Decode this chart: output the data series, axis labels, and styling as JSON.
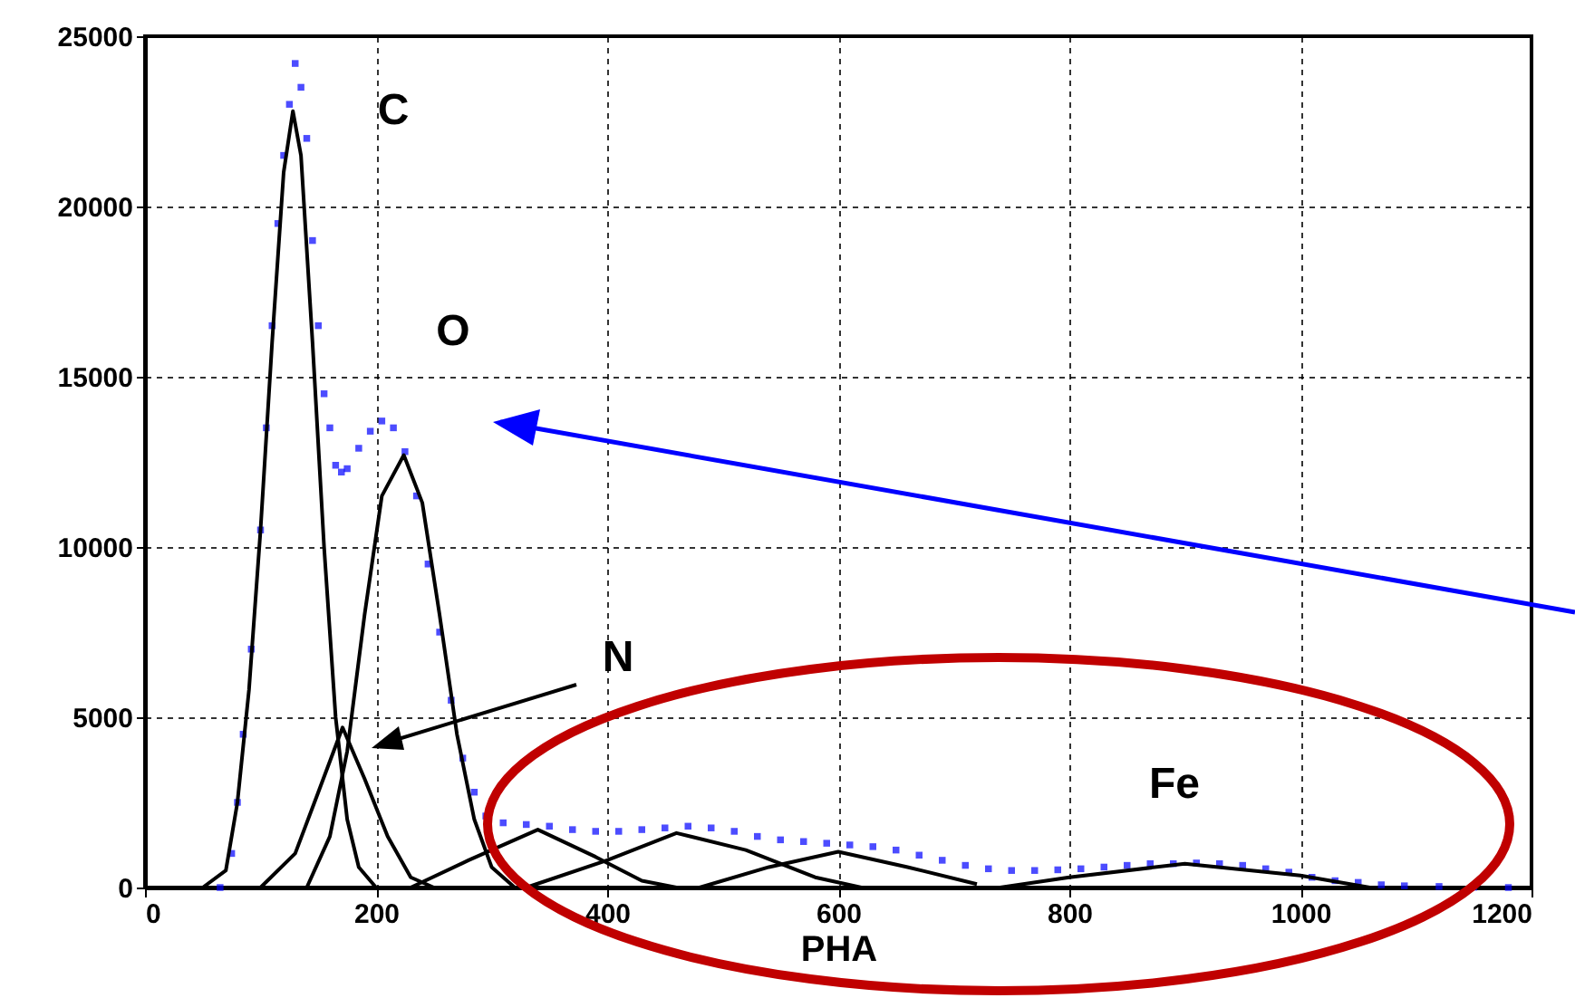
{
  "chart_data": {
    "type": "line",
    "xlabel": "PHA",
    "xlim": [
      0,
      1200
    ],
    "xticks": [
      0,
      200,
      400,
      600,
      800,
      1000,
      1200
    ],
    "ylim": [
      0,
      25000
    ],
    "yticks": [
      0,
      5000,
      10000,
      15000,
      20000,
      25000
    ],
    "grid": true,
    "annotations": [
      "C",
      "O",
      "N",
      "Fe"
    ],
    "series": [
      {
        "type": "scatter",
        "marker": "square",
        "color": "#0000ff",
        "x": [
          65,
          75,
          80,
          85,
          92,
          100,
          105,
          110,
          115,
          120,
          125,
          130,
          135,
          140,
          145,
          150,
          155,
          160,
          165,
          170,
          175,
          185,
          195,
          205,
          215,
          225,
          235,
          245,
          255,
          265,
          275,
          285,
          295,
          310,
          330,
          350,
          370,
          390,
          410,
          430,
          450,
          470,
          490,
          510,
          530,
          550,
          570,
          590,
          610,
          630,
          650,
          670,
          690,
          710,
          730,
          750,
          770,
          790,
          810,
          830,
          850,
          870,
          890,
          910,
          930,
          950,
          970,
          990,
          1010,
          1030,
          1050,
          1070,
          1090,
          1120,
          1150,
          1180
        ],
        "values": [
          0,
          1000,
          2500,
          4500,
          7000,
          10500,
          13500,
          16500,
          19500,
          21500,
          23000,
          24200,
          23500,
          22000,
          19000,
          16500,
          14500,
          13500,
          12400,
          12200,
          12300,
          12900,
          13400,
          13700,
          13500,
          12800,
          11500,
          9500,
          7500,
          5500,
          3800,
          2800,
          2100,
          1900,
          1850,
          1800,
          1700,
          1650,
          1650,
          1700,
          1750,
          1800,
          1750,
          1650,
          1500,
          1400,
          1350,
          1300,
          1250,
          1200,
          1100,
          950,
          800,
          650,
          550,
          500,
          500,
          520,
          550,
          600,
          650,
          700,
          700,
          720,
          700,
          650,
          550,
          450,
          300,
          200,
          150,
          80,
          50,
          30,
          10,
          0
        ]
      },
      {
        "color": "#000000",
        "x": [
          50,
          70,
          80,
          90,
          100,
          110,
          120,
          128,
          135,
          145,
          155,
          165,
          175,
          185,
          200
        ],
        "values": [
          0,
          500,
          2500,
          5800,
          10500,
          16000,
          21000,
          22800,
          21500,
          16000,
          10000,
          5000,
          2000,
          600,
          0
        ]
      },
      {
        "color": "#000000",
        "x": [
          140,
          160,
          175,
          190,
          205,
          224,
          240,
          255,
          270,
          285,
          300,
          320
        ],
        "values": [
          0,
          1500,
          4000,
          8000,
          11500,
          12700,
          11300,
          8000,
          4500,
          2000,
          600,
          0
        ]
      },
      {
        "color": "#000000",
        "x": [
          100,
          130,
          150,
          171,
          190,
          210,
          230,
          250
        ],
        "values": [
          0,
          1000,
          2800,
          4700,
          3200,
          1500,
          300,
          0
        ]
      },
      {
        "color": "#000000",
        "x": [
          230,
          280,
          340,
          390,
          430,
          460
        ],
        "values": [
          0,
          800,
          1700,
          900,
          200,
          0
        ]
      },
      {
        "color": "#000000",
        "x": [
          330,
          400,
          460,
          520,
          580,
          620
        ],
        "values": [
          0,
          800,
          1600,
          1100,
          300,
          0
        ]
      },
      {
        "color": "#000000",
        "x": [
          480,
          540,
          600,
          660,
          720
        ],
        "values": [
          0,
          600,
          1050,
          600,
          100
        ]
      },
      {
        "color": "#000000",
        "x": [
          740,
          800,
          900,
          1000,
          1060
        ],
        "values": [
          0,
          300,
          700,
          350,
          0
        ]
      }
    ]
  }
}
